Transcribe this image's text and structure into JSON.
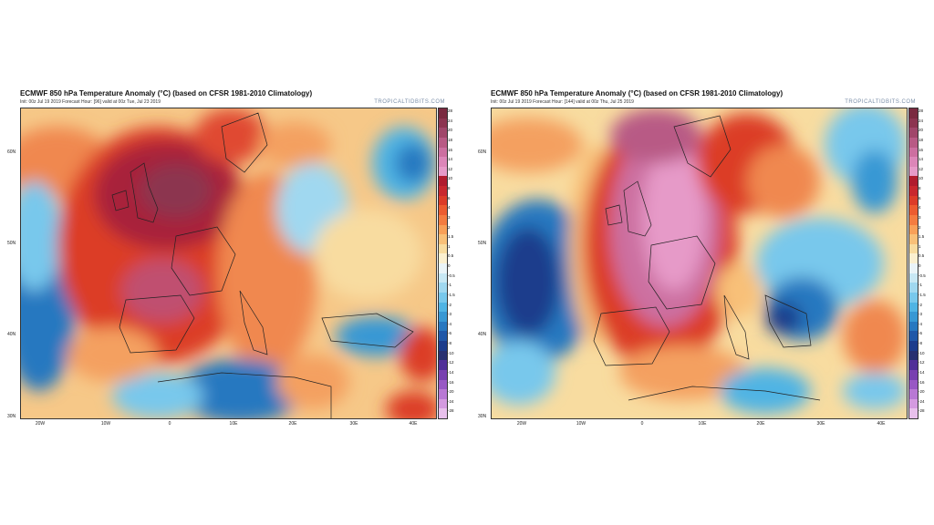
{
  "maps": [
    {
      "id": "left",
      "title": "ECMWF 850 hPa Temperature Anomaly (°C) (based on CFSR 1981-2010 Climatology)",
      "subtitle": "Init: 00z Jul 19 2019   Forecast Hour: [96]   valid at 00z Tue, Jul 23 2019",
      "brand": "TROPICALTIDBITS.COM",
      "lat_labels": [
        "60N",
        "50N",
        "40N",
        "30N"
      ],
      "lon_labels": [
        "20W",
        "10W",
        "0",
        "10E",
        "20E",
        "30E",
        "40E"
      ]
    },
    {
      "id": "right",
      "title": "ECMWF 850 hPa Temperature Anomaly (°C) (based on CFSR 1981-2010 Climatology)",
      "subtitle": "Init: 00z Jul 19 2019   Forecast Hour: [144]   valid at 00z Thu, Jul 25 2019",
      "brand": "TROPICALTIDBITS.COM",
      "lat_labels": [
        "60N",
        "50N",
        "40N",
        "30N"
      ],
      "lon_labels": [
        "20W",
        "10W",
        "0",
        "10E",
        "20E",
        "30E",
        "40E"
      ]
    }
  ],
  "colorbar": {
    "labels": [
      "28",
      "24",
      "20",
      "18",
      "16",
      "14",
      "12",
      "10",
      "8",
      "6",
      "4",
      "3",
      "2",
      "1.5",
      "1",
      "0.5",
      "0",
      "-0.5",
      "-1",
      "-1.5",
      "-2",
      "-3",
      "-4",
      "-6",
      "-8",
      "-10",
      "-12",
      "-14",
      "-16",
      "-20",
      "-24",
      "-28"
    ],
    "colors": [
      "#7a2a40",
      "#8c3450",
      "#a0466a",
      "#b85a85",
      "#cc6fa0",
      "#dc86b8",
      "#e69ac8",
      "#b01c2e",
      "#c8282e",
      "#dc3c28",
      "#ec5c30",
      "#f47c40",
      "#f8a058",
      "#f8c078",
      "#f8dca0",
      "#fbf0d0",
      "#eaf4f8",
      "#c8e8f4",
      "#a0d8f0",
      "#78c8ec",
      "#50b4e4",
      "#3898d4",
      "#2878c0",
      "#2058a8",
      "#1c3c8c",
      "#283070",
      "#503098",
      "#7840b0",
      "#9858c4",
      "#b878d4",
      "#d49ae0",
      "#e8c0ec"
    ]
  }
}
